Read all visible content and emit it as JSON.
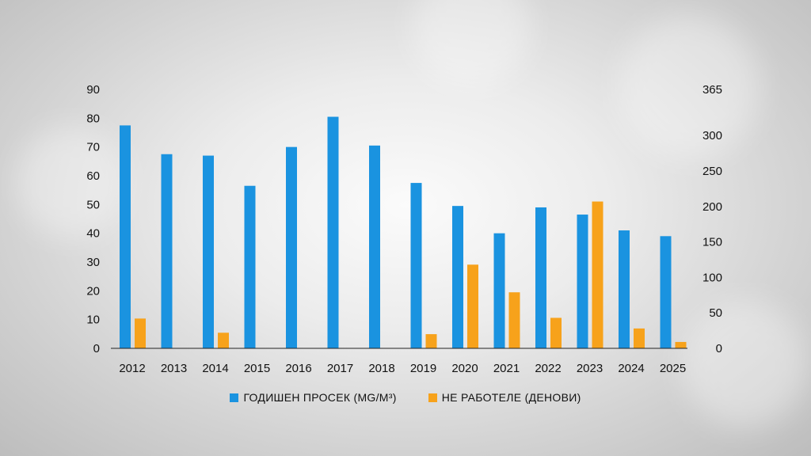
{
  "colors": {
    "series1": "#1a93e0",
    "series2": "#f7a21b",
    "axis": "#222222"
  },
  "legend": {
    "series1_label": "ГОДИШЕН ПРОСЕК (MG/M³)",
    "series2_label": "НЕ РАБОТЕЛЕ (ДЕНОВИ)"
  },
  "chart_data": {
    "type": "bar",
    "categories": [
      "2012",
      "2013",
      "2014",
      "2015",
      "2016",
      "2017",
      "2018",
      "2019",
      "2020",
      "2021",
      "2022",
      "2023",
      "2024",
      "2025"
    ],
    "series": [
      {
        "name": "ГОДИШЕН ПРОСЕК (MG/M³)",
        "axis": "left",
        "values": [
          77.5,
          67.5,
          67,
          56.5,
          70,
          80.5,
          70.5,
          57.5,
          49.5,
          40,
          49,
          46.5,
          41,
          39
        ]
      },
      {
        "name": "НЕ РАБОТЕЛЕ (ДЕНОВИ)",
        "axis": "right",
        "values": [
          42,
          0,
          22,
          0,
          0,
          0,
          0,
          20,
          118,
          79,
          43,
          207,
          28,
          9
        ]
      }
    ],
    "y_left": {
      "ylim": [
        0,
        90
      ],
      "ticks": [
        "0",
        "10",
        "20",
        "30",
        "40",
        "50",
        "60",
        "70",
        "80",
        "90"
      ]
    },
    "y_right": {
      "ylim": [
        0,
        365
      ],
      "ticks": [
        "0",
        "50",
        "100",
        "150",
        "200",
        "250",
        "300",
        "365"
      ]
    },
    "grid": false,
    "legend_position": "bottom"
  }
}
